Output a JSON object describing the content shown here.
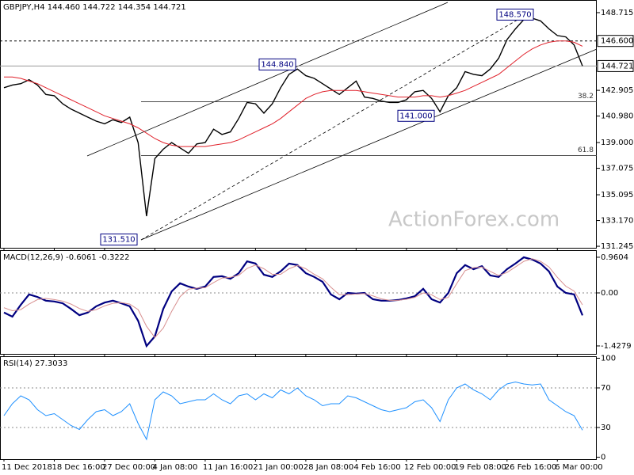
{
  "chart_data": [
    {
      "type": "line",
      "title": "GBPJPY,H4  144.460 144.722 144.354 144.721",
      "watermark": "ActionForex.com",
      "ylim": [
        131.13,
        149.66
      ],
      "yticks": [
        148.715,
        142.905,
        {
          "value": 140.98,
          "label": "140.980"
        },
        {
          "value": 139,
          "label": "139.000"
        },
        137.075,
        135.095,
        {
          "value": 133.17,
          "label": "133.170"
        },
        131.245
      ],
      "levels": [
        {
          "value": 146.6,
          "label": "146.600"
        },
        144.721
      ],
      "fib_levels": [
        {
          "value": 142.05,
          "label": "38.2"
        },
        {
          "value": 138.03,
          "label": "61.8"
        }
      ],
      "annotations": [
        {
          "value": 148.57,
          "label": "148.570"
        },
        {
          "value": 144.84,
          "label": "144.840"
        },
        {
          "value": 141.0,
          "label": "141.000"
        },
        {
          "value": 131.51,
          "label": "131.510"
        }
      ],
      "series": [
        {
          "color": "#000000",
          "values": [
            143.1,
            143.3,
            143.4,
            143.7,
            143.3,
            142.6,
            142.5,
            141.9,
            141.5,
            141.2,
            140.9,
            140.6,
            140.4,
            140.7,
            140.5,
            140.9,
            139.0,
            133.5,
            137.8,
            138.5,
            139.0,
            138.6,
            138.2,
            138.9,
            139.0,
            140.0,
            139.6,
            139.8,
            140.8,
            142.0,
            141.9,
            141.2,
            141.9,
            143.1,
            144.1,
            144.5,
            144.0,
            143.8,
            143.4,
            143.0,
            142.6,
            143.1,
            143.6,
            142.4,
            142.3,
            142.1,
            142.0,
            142.0,
            142.2,
            142.8,
            142.9,
            142.3,
            141.3,
            142.5,
            143.1,
            144.3,
            144.1,
            144.0,
            144.5,
            145.3,
            146.7,
            147.5,
            148.2,
            148.3,
            148.1,
            147.5,
            147.0,
            146.9,
            146.3,
            144.721
          ]
        },
        {
          "color": "#e0202a",
          "values": [
            143.9,
            143.9,
            143.8,
            143.6,
            143.4,
            143.1,
            142.8,
            142.5,
            142.2,
            141.9,
            141.6,
            141.3,
            141.0,
            140.8,
            140.6,
            140.4,
            140.1,
            139.7,
            139.3,
            139.0,
            138.8,
            138.7,
            138.7,
            138.7,
            138.7,
            138.8,
            138.9,
            139.0,
            139.2,
            139.5,
            139.8,
            140.1,
            140.4,
            140.8,
            141.3,
            141.8,
            142.3,
            142.6,
            142.8,
            142.9,
            142.9,
            142.9,
            142.9,
            142.8,
            142.7,
            142.6,
            142.5,
            142.4,
            142.4,
            142.4,
            142.5,
            142.5,
            142.4,
            142.5,
            142.7,
            142.9,
            143.2,
            143.5,
            143.8,
            144.1,
            144.6,
            145.1,
            145.6,
            146.0,
            146.3,
            146.5,
            146.6,
            146.6,
            146.5,
            146.2
          ]
        }
      ]
    },
    {
      "type": "line",
      "title": "MACD(12,26,9) -0.6061 -0.3222",
      "ylim": [
        -1.642,
        1.151
      ],
      "yticks": [
        0.9604,
        {
          "value": 0,
          "label": "0.00"
        },
        -1.4279
      ],
      "series": [
        {
          "color": "#000080",
          "values": [
            -0.53,
            -0.64,
            -0.32,
            -0.04,
            -0.11,
            -0.21,
            -0.23,
            -0.28,
            -0.43,
            -0.6,
            -0.53,
            -0.36,
            -0.26,
            -0.21,
            -0.28,
            -0.36,
            -0.75,
            -1.43,
            -1.17,
            -0.43,
            0.04,
            0.26,
            0.17,
            0.11,
            0.17,
            0.43,
            0.45,
            0.38,
            0.53,
            0.85,
            0.79,
            0.49,
            0.43,
            0.58,
            0.79,
            0.75,
            0.53,
            0.43,
            0.3,
            -0.04,
            -0.17,
            0.0,
            -0.02,
            0.0,
            -0.17,
            -0.21,
            -0.21,
            -0.19,
            -0.15,
            -0.09,
            0.11,
            -0.17,
            -0.26,
            0.0,
            0.53,
            0.75,
            0.64,
            0.72,
            0.47,
            0.43,
            0.64,
            0.79,
            0.96,
            0.9,
            0.79,
            0.58,
            0.17,
            0.0,
            -0.04,
            -0.6061
          ]
        },
        {
          "color": "#d89090",
          "values": [
            -0.4,
            -0.48,
            -0.45,
            -0.3,
            -0.18,
            -0.15,
            -0.18,
            -0.22,
            -0.3,
            -0.42,
            -0.5,
            -0.45,
            -0.35,
            -0.28,
            -0.26,
            -0.3,
            -0.45,
            -0.9,
            -1.2,
            -0.95,
            -0.5,
            -0.1,
            0.1,
            0.13,
            0.14,
            0.28,
            0.4,
            0.42,
            0.47,
            0.66,
            0.75,
            0.65,
            0.5,
            0.5,
            0.65,
            0.74,
            0.65,
            0.5,
            0.38,
            0.15,
            -0.05,
            -0.05,
            -0.03,
            -0.02,
            -0.08,
            -0.16,
            -0.2,
            -0.2,
            -0.17,
            -0.12,
            0.0,
            -0.05,
            -0.18,
            -0.12,
            0.25,
            0.6,
            0.68,
            0.7,
            0.58,
            0.47,
            0.55,
            0.7,
            0.85,
            0.92,
            0.85,
            0.7,
            0.42,
            0.18,
            0.05,
            -0.3222
          ]
        }
      ]
    },
    {
      "type": "line",
      "title": "RSI(14) 27.3033",
      "ylim": [
        -2,
        102
      ],
      "yticks": [
        100,
        70,
        30,
        0
      ],
      "guides": [
        70,
        30
      ],
      "categories": [
        "11 Dec 2018",
        null,
        null,
        null,
        null,
        null,
        "18 Dec 16:00",
        null,
        null,
        null,
        null,
        null,
        "27 Dec 00:00",
        null,
        null,
        null,
        null,
        null,
        "4 Jan 08:00",
        null,
        null,
        null,
        null,
        null,
        "11 Jan 16:00",
        null,
        null,
        null,
        null,
        null,
        "21 Jan 00:00",
        null,
        null,
        null,
        null,
        null,
        "28 Jan 08:00",
        null,
        null,
        null,
        null,
        null,
        "4 Feb 16:00",
        null,
        null,
        null,
        null,
        null,
        "12 Feb 00:00",
        null,
        null,
        null,
        null,
        null,
        "19 Feb 08:00",
        null,
        null,
        null,
        null,
        null,
        "26 Feb 16:00",
        null,
        null,
        null,
        null,
        null,
        "6 Mar 00:00",
        null,
        null,
        null
      ],
      "series": [
        {
          "color": "#1e90ff",
          "values": [
            42,
            54,
            62,
            58,
            48,
            42,
            44,
            38,
            32,
            28,
            38,
            46,
            48,
            42,
            46,
            54,
            34,
            18,
            58,
            66,
            62,
            54,
            56,
            58,
            58,
            64,
            58,
            54,
            62,
            64,
            58,
            64,
            60,
            68,
            64,
            70,
            62,
            58,
            52,
            54,
            54,
            62,
            60,
            56,
            52,
            48,
            46,
            48,
            50,
            56,
            58,
            50,
            36,
            58,
            70,
            74,
            68,
            64,
            58,
            68,
            74,
            76,
            74,
            73,
            74,
            58,
            52,
            46,
            42,
            27.3033
          ]
        }
      ]
    }
  ]
}
